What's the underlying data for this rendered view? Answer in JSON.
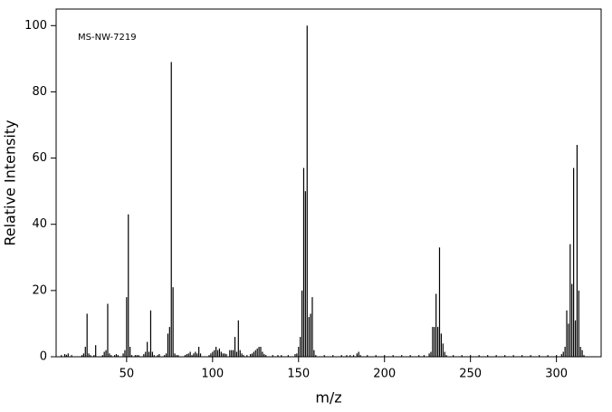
{
  "chart_data": {
    "type": "stem",
    "annotation": "MS-NW-7219",
    "xlabel": "m/z",
    "ylabel": "Relative Intensity",
    "color": "#000000",
    "xlim": [
      9,
      326
    ],
    "ylim": [
      0,
      105
    ],
    "xticks": [
      50,
      100,
      150,
      200,
      250,
      300
    ],
    "yticks": [
      0,
      20,
      40,
      60,
      80,
      100
    ],
    "x": [
      12,
      14,
      15,
      16,
      18,
      24,
      25,
      26,
      27,
      28,
      29,
      31,
      32,
      36,
      37,
      38,
      39,
      40,
      41,
      43,
      44,
      45,
      48,
      49,
      50,
      51,
      52,
      53,
      55,
      56,
      57,
      60,
      61,
      62,
      63,
      64,
      65,
      66,
      68,
      69,
      72,
      73,
      74,
      75,
      76,
      77,
      78,
      79,
      80,
      84,
      85,
      86,
      87,
      88,
      89,
      90,
      91,
      92,
      93,
      98,
      99,
      100,
      101,
      102,
      103,
      104,
      105,
      106,
      107,
      108,
      110,
      111,
      112,
      113,
      114,
      115,
      116,
      117,
      118,
      120,
      122,
      123,
      124,
      125,
      126,
      127,
      128,
      129,
      130,
      131,
      135,
      138,
      140,
      144,
      148,
      149,
      150,
      151,
      152,
      153,
      154,
      155,
      156,
      157,
      158,
      159,
      160,
      165,
      170,
      175,
      178,
      180,
      182,
      184,
      185,
      186,
      190,
      195,
      200,
      205,
      210,
      215,
      220,
      223,
      226,
      227,
      228,
      229,
      230,
      231,
      232,
      233,
      234,
      235,
      236,
      240,
      245,
      250,
      255,
      260,
      265,
      270,
      275,
      280,
      285,
      290,
      295,
      300,
      303,
      304,
      305,
      306,
      307,
      308,
      309,
      310,
      311,
      312,
      313,
      314,
      315,
      316
    ],
    "values": [
      0.5,
      0.8,
      0.6,
      1,
      0.5,
      0.5,
      1,
      3,
      13,
      1,
      0.5,
      0.5,
      3.5,
      0.5,
      1.5,
      2,
      16,
      1,
      0.5,
      0.5,
      0.8,
      0.5,
      1,
      2,
      18,
      43,
      3,
      0.5,
      0.5,
      0.5,
      0.5,
      0.8,
      1.5,
      4.5,
      1.5,
      14,
      1.5,
      0.5,
      0.5,
      0.8,
      0.5,
      1,
      7,
      9,
      89,
      21,
      1,
      0.5,
      0.5,
      0.5,
      0.8,
      1,
      1.5,
      0.5,
      1,
      1.5,
      1,
      3,
      1,
      0.5,
      1,
      1.5,
      2,
      3,
      2,
      2.5,
      1.5,
      1,
      1,
      0.8,
      2,
      2,
      2,
      6,
      1.5,
      11,
      2,
      1,
      0.5,
      0.5,
      0.8,
      1,
      1.5,
      2,
      2.5,
      3,
      3,
      1.5,
      0.8,
      0.5,
      0.5,
      0.5,
      0.5,
      0.5,
      0.8,
      1,
      3,
      6,
      20,
      57,
      50,
      100,
      12,
      13,
      18,
      2,
      0.5,
      0.5,
      0.5,
      0.5,
      0.5,
      0.5,
      0.5,
      1,
      1.5,
      0.5,
      0.5,
      0.5,
      0.5,
      0.5,
      0.5,
      0.5,
      0.5,
      0.5,
      1,
      1.5,
      9,
      9,
      19,
      9,
      33,
      7,
      4,
      1.5,
      0.5,
      0.5,
      0.5,
      0.5,
      0.5,
      0.5,
      0.5,
      0.5,
      0.5,
      0.5,
      0.5,
      0.5,
      0.5,
      0.5,
      0.8,
      1.5,
      3,
      14,
      10,
      34,
      22,
      57,
      11,
      64,
      20,
      3,
      2,
      0.5
    ]
  }
}
